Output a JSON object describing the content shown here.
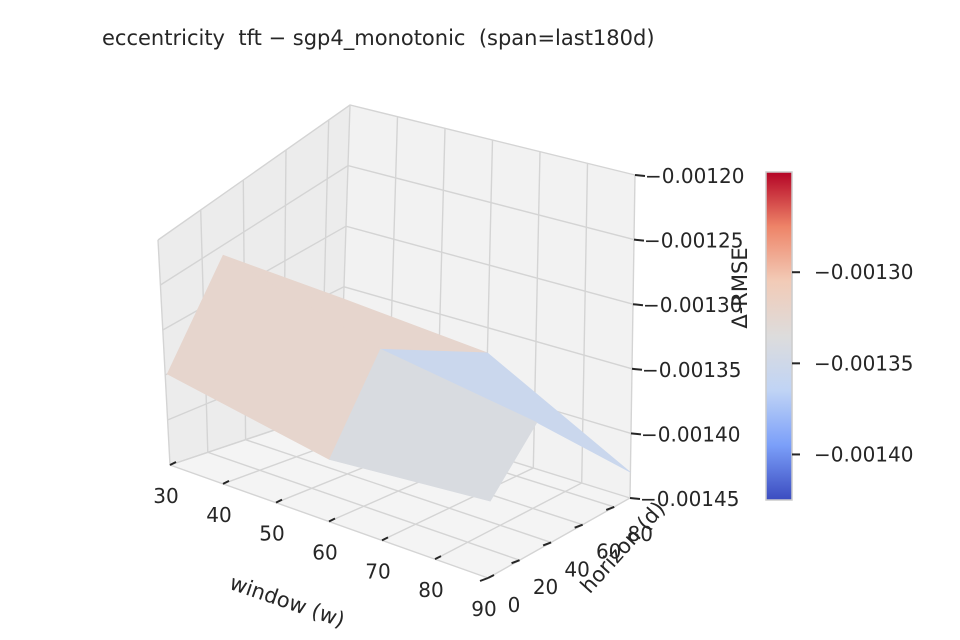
{
  "chart_data": {
    "type": "surface3d",
    "title": "eccentricity  tft − sgp4_monotonic  (span=last180d)",
    "xlabel": "window (w)",
    "ylabel": "horizon (d)",
    "zlabel": "Δ-RMSE",
    "x_ticks": [
      "30",
      "40",
      "50",
      "60",
      "70",
      "80",
      "90"
    ],
    "y_ticks": [
      "0",
      "20",
      "40",
      "60",
      "80"
    ],
    "z_ticks": [
      "−0.00145",
      "−0.00140",
      "−0.00135",
      "−0.00130",
      "−0.00125",
      "−0.00120"
    ],
    "x": [
      30,
      60,
      90
    ],
    "y": [
      1,
      30,
      90
    ],
    "z": [
      [
        -0.00135,
        -0.00126,
        -0.00136
      ],
      [
        -0.00138,
        -0.0013,
        -0.00137
      ],
      [
        -0.00136,
        -0.00132,
        -0.00143
      ]
    ],
    "xlim": [
      30,
      90
    ],
    "ylim": [
      0,
      90
    ],
    "zlim": [
      -0.00145,
      -0.0012
    ],
    "colormap": "coolwarm",
    "grid": true,
    "colorbar": {
      "ticks": [
        "−0.00130",
        "−0.00135",
        "−0.00140"
      ],
      "tick_values": [
        -0.0013,
        -0.00135,
        -0.0014
      ],
      "range": [
        -0.001425,
        -0.001245
      ],
      "colors": [
        "#3b4cc0",
        "#7b9ff9",
        "#c0d4f5",
        "#dddcdc",
        "#f2cbb7",
        "#ee8468",
        "#b40426"
      ]
    }
  }
}
